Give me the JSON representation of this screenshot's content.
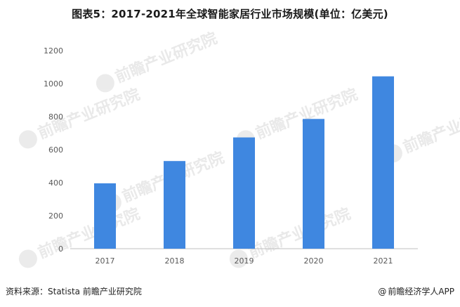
{
  "header": {
    "title": "图表5：2017-2021年全球智能家居行业市场规模(单位：亿美元)"
  },
  "footer": {
    "source": "资料来源：Statista 前瞻产业研究院",
    "brand": "前瞻经济学人APP",
    "brand_symbol": "@"
  },
  "watermark": {
    "text": "前瞻产业研究院",
    "icon": "logo-icon"
  },
  "colors": {
    "bar": "#3f87e0",
    "axis": "#bfbfbf",
    "tick_text": "#595959"
  },
  "chart_data": {
    "type": "bar",
    "title": "图表5：2017-2021年全球智能家居行业市场规模(单位：亿美元)",
    "categories": [
      "2017",
      "2018",
      "2019",
      "2020",
      "2021"
    ],
    "values": [
      396,
      531,
      674,
      786,
      1044
    ],
    "xlabel": "",
    "ylabel": "",
    "ylim": [
      0,
      1200
    ],
    "yticks": [
      0,
      200,
      400,
      600,
      800,
      1000,
      1200
    ],
    "grid": false,
    "legend": "none"
  }
}
